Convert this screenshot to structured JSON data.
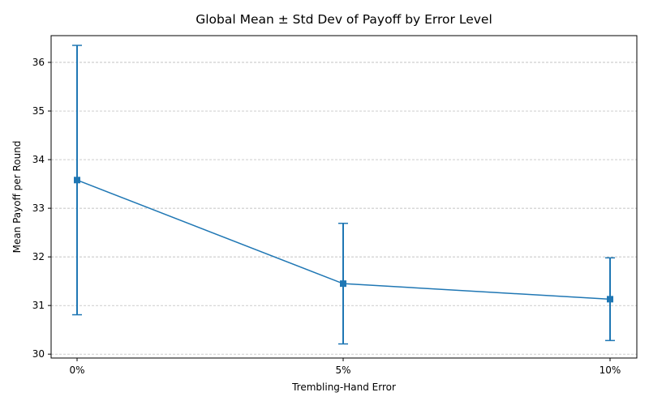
{
  "chart_data": {
    "type": "line",
    "title": "Global Mean ± Std Dev of Payoff by Error Level",
    "xlabel": "Trembling-Hand Error",
    "ylabel": "Mean Payoff per Round",
    "categories": [
      "0%",
      "5%",
      "10%"
    ],
    "series": [
      {
        "values": [
          33.58,
          31.45,
          31.13
        ],
        "std": [
          2.77,
          1.24,
          0.85
        ],
        "color": "#1f77b4",
        "marker": "square"
      }
    ],
    "yticks": [
      30,
      31,
      32,
      33,
      34,
      35,
      36
    ],
    "ylim": [
      29.92,
      36.55
    ],
    "grid": "y-dashed",
    "legend": "none"
  }
}
